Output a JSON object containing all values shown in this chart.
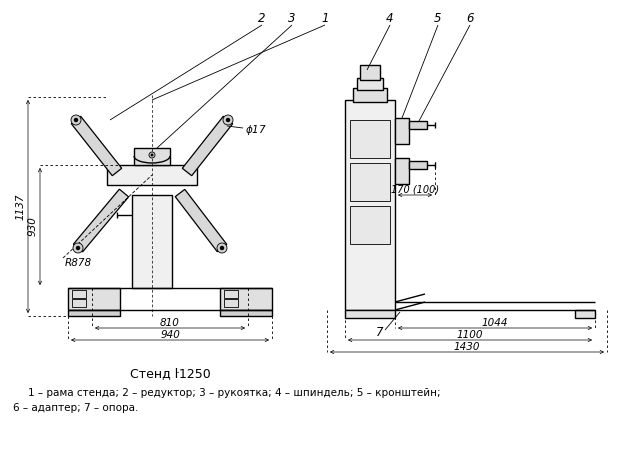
{
  "title": "Стенд ŀ1250",
  "caption_line1": "1 – рама стенда; 2 – редуктор; 3 – рукоятка; 4 – шпиндель; 5 – кронштейн;",
  "caption_line2": "6 – адаптер; 7 – опора.",
  "bg_color": "#ffffff"
}
